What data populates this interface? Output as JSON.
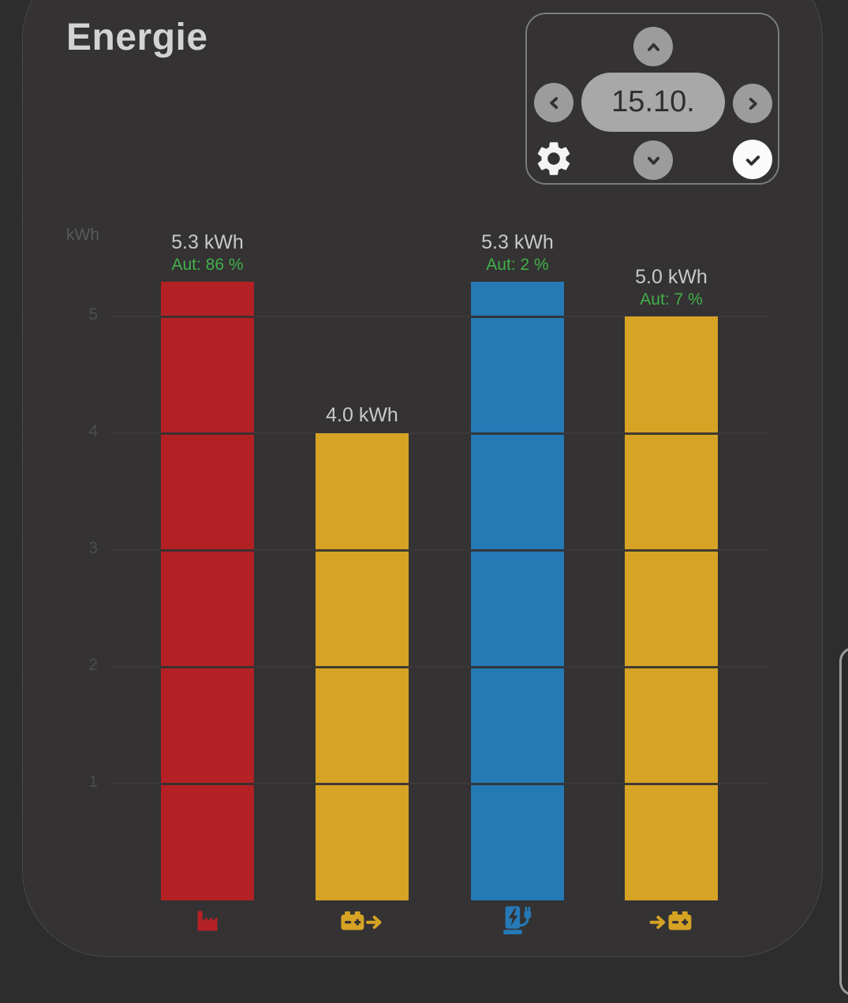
{
  "title": "Energie",
  "date_navigator": {
    "selected_date": "15.10.",
    "buttons": {
      "up": "chevron-up",
      "previous": "chevron-left",
      "next": "chevron-right",
      "down": "chevron-down",
      "settings": "gear",
      "confirm": "check"
    }
  },
  "colors": {
    "import_red": "#b42125",
    "battery_yellow": "#d6a324",
    "ev_blue": "#2579b5",
    "autarky_green": "#41b14a",
    "card_bg": "#343233",
    "page_bg": "#2e2d2d"
  },
  "chart_data": {
    "type": "bar",
    "title": "Energie",
    "ylabel": "kWh",
    "ylim": [
      0,
      5.5
    ],
    "yticks": [
      1,
      2,
      3,
      4,
      5
    ],
    "grid": "horizontal lines at integer kWh, visible as dark segment lines across bars",
    "legend_position": "none",
    "categories": [
      "grid-import",
      "battery-discharge",
      "ev-charging",
      "battery-charge"
    ],
    "bars": [
      {
        "name": "grid-import",
        "icon": "factory-icon",
        "color": "#b42125",
        "value": 5.3,
        "value_label": "5.3 kWh",
        "autarky_label": "Aut: 86 %",
        "autarky_pct": 86
      },
      {
        "name": "battery-discharge",
        "icon": "battery-out-icon",
        "color": "#d6a324",
        "value": 4.0,
        "value_label": "4.0 kWh",
        "autarky_label": null,
        "autarky_pct": null
      },
      {
        "name": "ev-charging",
        "icon": "ev-charger-icon",
        "color": "#2579b5",
        "value": 5.3,
        "value_label": "5.3 kWh",
        "autarky_label": "Aut: 2 %",
        "autarky_pct": 2
      },
      {
        "name": "battery-charge",
        "icon": "battery-in-icon",
        "color": "#d6a324",
        "value": 5.0,
        "value_label": "5.0 kWh",
        "autarky_label": "Aut: 7 %",
        "autarky_pct": 7
      }
    ]
  }
}
